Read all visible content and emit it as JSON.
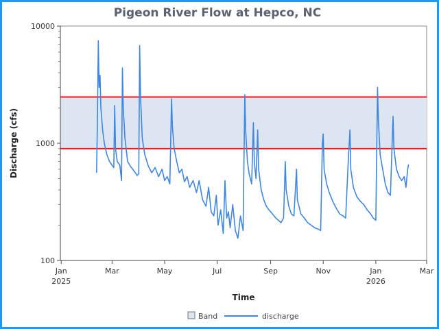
{
  "chart_data": {
    "type": "line",
    "title": "Pigeon River Flow at Hepco, NC",
    "xlabel": "Time",
    "ylabel": "Discharge (cfs)",
    "y_scale": "log",
    "ylim": [
      100,
      10000
    ],
    "xlim": [
      "2024-12-31",
      "2026-03-01"
    ],
    "y_ticks": [
      {
        "value": 100,
        "label": "100"
      },
      {
        "value": 1000,
        "label": "1000"
      },
      {
        "value": 10000,
        "label": "10000"
      }
    ],
    "x_ticks": [
      {
        "date": "2025-01-01",
        "label": "Jan",
        "sublabel": "2025"
      },
      {
        "date": "2025-03-01",
        "label": "Mar",
        "sublabel": ""
      },
      {
        "date": "2025-05-01",
        "label": "May",
        "sublabel": ""
      },
      {
        "date": "2025-07-01",
        "label": "Jul",
        "sublabel": ""
      },
      {
        "date": "2025-09-01",
        "label": "Sep",
        "sublabel": ""
      },
      {
        "date": "2025-11-01",
        "label": "Nov",
        "sublabel": ""
      },
      {
        "date": "2026-01-01",
        "label": "Jan",
        "sublabel": "2026"
      },
      {
        "date": "2026-03-01",
        "label": "Mar",
        "sublabel": ""
      }
    ],
    "band": {
      "name": "Band",
      "low": 900,
      "high": 2480,
      "fill": "#dce6f2",
      "edge_color": "#e8191f"
    },
    "series": [
      {
        "name": "discharge",
        "color": "#3f86e0",
        "points": [
          [
            "2025-02-11",
            560
          ],
          [
            "2025-02-12",
            1500
          ],
          [
            "2025-02-13",
            7500
          ],
          [
            "2025-02-14",
            3000
          ],
          [
            "2025-02-15",
            3800
          ],
          [
            "2025-02-16",
            2000
          ],
          [
            "2025-02-18",
            1300
          ],
          [
            "2025-02-20",
            1000
          ],
          [
            "2025-02-23",
            800
          ],
          [
            "2025-02-26",
            700
          ],
          [
            "2025-03-01",
            650
          ],
          [
            "2025-03-03",
            620
          ],
          [
            "2025-03-04",
            2100
          ],
          [
            "2025-03-05",
            900
          ],
          [
            "2025-03-07",
            700
          ],
          [
            "2025-03-10",
            650
          ],
          [
            "2025-03-12",
            480
          ],
          [
            "2025-03-13",
            4400
          ],
          [
            "2025-03-14",
            2000
          ],
          [
            "2025-03-16",
            1100
          ],
          [
            "2025-03-19",
            700
          ],
          [
            "2025-03-22",
            640
          ],
          [
            "2025-03-25",
            600
          ],
          [
            "2025-03-28",
            560
          ],
          [
            "2025-03-30",
            530
          ],
          [
            "2025-04-01",
            550
          ],
          [
            "2025-04-02",
            6800
          ],
          [
            "2025-04-03",
            2500
          ],
          [
            "2025-04-05",
            1100
          ],
          [
            "2025-04-08",
            800
          ],
          [
            "2025-04-12",
            640
          ],
          [
            "2025-04-16",
            560
          ],
          [
            "2025-04-20",
            620
          ],
          [
            "2025-04-24",
            520
          ],
          [
            "2025-04-28",
            600
          ],
          [
            "2025-05-01",
            480
          ],
          [
            "2025-05-04",
            520
          ],
          [
            "2025-05-07",
            450
          ],
          [
            "2025-05-09",
            2400
          ],
          [
            "2025-05-10",
            1400
          ],
          [
            "2025-05-12",
            900
          ],
          [
            "2025-05-15",
            700
          ],
          [
            "2025-05-18",
            560
          ],
          [
            "2025-05-21",
            600
          ],
          [
            "2025-05-24",
            470
          ],
          [
            "2025-05-27",
            520
          ],
          [
            "2025-05-30",
            420
          ],
          [
            "2025-06-03",
            480
          ],
          [
            "2025-06-07",
            380
          ],
          [
            "2025-06-10",
            480
          ],
          [
            "2025-06-14",
            330
          ],
          [
            "2025-06-18",
            290
          ],
          [
            "2025-06-21",
            420
          ],
          [
            "2025-06-24",
            260
          ],
          [
            "2025-06-27",
            240
          ],
          [
            "2025-06-30",
            360
          ],
          [
            "2025-07-02",
            200
          ],
          [
            "2025-07-05",
            270
          ],
          [
            "2025-07-08",
            170
          ],
          [
            "2025-07-10",
            480
          ],
          [
            "2025-07-12",
            230
          ],
          [
            "2025-07-14",
            260
          ],
          [
            "2025-07-16",
            190
          ],
          [
            "2025-07-19",
            300
          ],
          [
            "2025-07-22",
            180
          ],
          [
            "2025-07-25",
            155
          ],
          [
            "2025-07-28",
            240
          ],
          [
            "2025-07-31",
            180
          ],
          [
            "2025-08-02",
            2600
          ],
          [
            "2025-08-03",
            1300
          ],
          [
            "2025-08-05",
            700
          ],
          [
            "2025-08-07",
            550
          ],
          [
            "2025-08-10",
            450
          ],
          [
            "2025-08-12",
            1500
          ],
          [
            "2025-08-13",
            700
          ],
          [
            "2025-08-15",
            500
          ],
          [
            "2025-08-17",
            1300
          ],
          [
            "2025-08-18",
            600
          ],
          [
            "2025-08-21",
            400
          ],
          [
            "2025-08-24",
            330
          ],
          [
            "2025-08-27",
            290
          ],
          [
            "2025-08-30",
            270
          ],
          [
            "2025-09-03",
            250
          ],
          [
            "2025-09-07",
            230
          ],
          [
            "2025-09-10",
            220
          ],
          [
            "2025-09-13",
            210
          ],
          [
            "2025-09-16",
            230
          ],
          [
            "2025-09-18",
            700
          ],
          [
            "2025-09-19",
            400
          ],
          [
            "2025-09-22",
            290
          ],
          [
            "2025-09-25",
            250
          ],
          [
            "2025-09-28",
            240
          ],
          [
            "2025-10-01",
            600
          ],
          [
            "2025-10-02",
            330
          ],
          [
            "2025-10-06",
            250
          ],
          [
            "2025-10-10",
            230
          ],
          [
            "2025-10-14",
            210
          ],
          [
            "2025-10-18",
            200
          ],
          [
            "2025-10-22",
            190
          ],
          [
            "2025-10-26",
            185
          ],
          [
            "2025-10-29",
            180
          ],
          [
            "2025-10-31",
            1000
          ],
          [
            "2025-11-01",
            1200
          ],
          [
            "2025-11-02",
            600
          ],
          [
            "2025-11-05",
            450
          ],
          [
            "2025-11-08",
            380
          ],
          [
            "2025-11-12",
            320
          ],
          [
            "2025-11-16",
            280
          ],
          [
            "2025-11-20",
            250
          ],
          [
            "2025-11-24",
            240
          ],
          [
            "2025-11-27",
            230
          ],
          [
            "2025-11-30",
            700
          ],
          [
            "2025-12-02",
            1300
          ],
          [
            "2025-12-03",
            600
          ],
          [
            "2025-12-06",
            420
          ],
          [
            "2025-12-10",
            350
          ],
          [
            "2025-12-14",
            320
          ],
          [
            "2025-12-18",
            300
          ],
          [
            "2025-12-22",
            270
          ],
          [
            "2025-12-26",
            250
          ],
          [
            "2025-12-29",
            230
          ],
          [
            "2026-01-01",
            220
          ],
          [
            "2026-01-03",
            3000
          ],
          [
            "2026-01-04",
            1600
          ],
          [
            "2026-01-06",
            800
          ],
          [
            "2026-01-09",
            600
          ],
          [
            "2026-01-12",
            450
          ],
          [
            "2026-01-15",
            380
          ],
          [
            "2026-01-18",
            360
          ],
          [
            "2026-01-21",
            1700
          ],
          [
            "2026-01-22",
            900
          ],
          [
            "2026-01-25",
            600
          ],
          [
            "2026-01-28",
            520
          ],
          [
            "2026-01-31",
            480
          ],
          [
            "2026-02-03",
            520
          ],
          [
            "2026-02-05",
            420
          ],
          [
            "2026-02-07",
            600
          ],
          [
            "2026-02-08",
            660
          ]
        ]
      }
    ],
    "legend": [
      {
        "label": "Band",
        "kind": "band"
      },
      {
        "label": "discharge",
        "kind": "line"
      }
    ],
    "legend_position": "bottom-center",
    "grid": false
  }
}
